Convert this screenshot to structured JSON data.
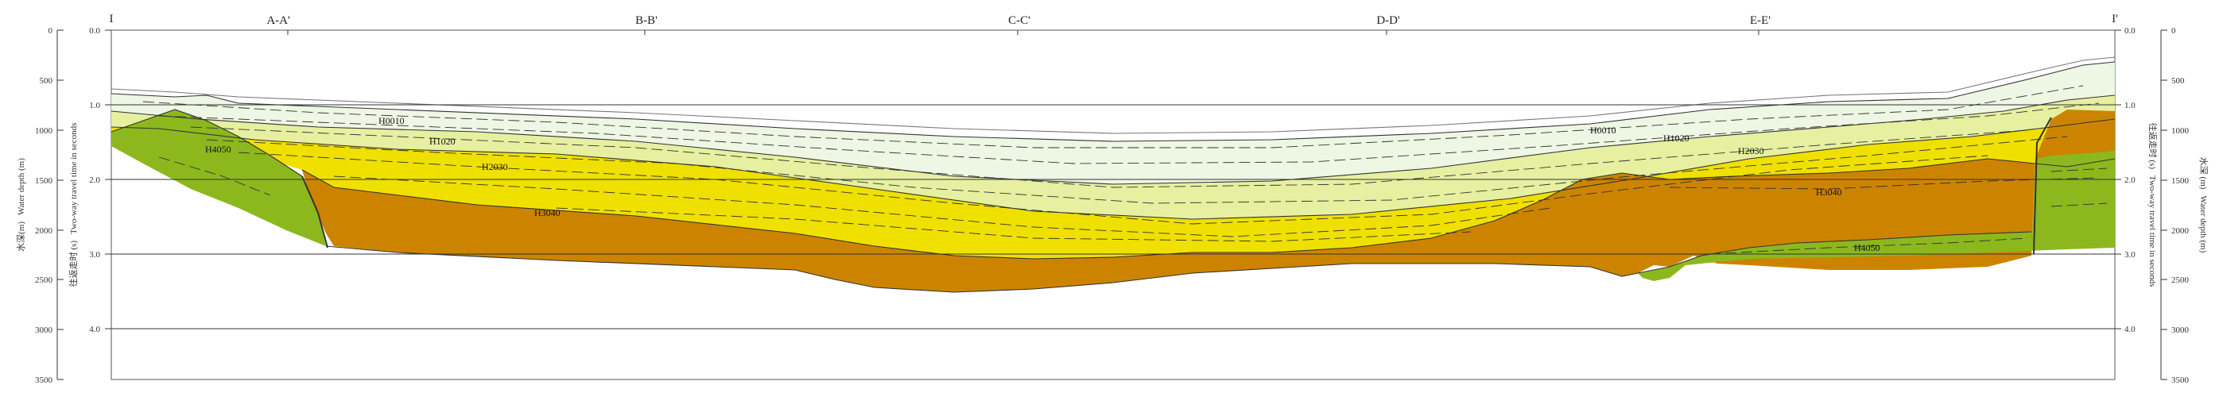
{
  "section_labels": {
    "left_end": "I",
    "right_end": "I'",
    "crossings": [
      "A-A'",
      "B-B'",
      "C-C'",
      "D-D'",
      "E-E'"
    ]
  },
  "axes": {
    "left_outer_title_cn": "水深(m)",
    "left_outer_title_en": "Water depth (m)",
    "left_inner_title_cn": "往返走时 (s)",
    "left_inner_title_en": "Two-way travel time in seconds",
    "right_inner_title_cn": "往返走时 (s)",
    "right_inner_title_en": "Two-way travel time in seconds",
    "right_outer_title_cn": "水深 (m)",
    "right_outer_title_en": "Water depth (m)",
    "depth_ticks": [
      "0",
      "500",
      "1000",
      "1500",
      "2000",
      "2500",
      "3000",
      "3500"
    ],
    "twt_ticks": [
      "0.0",
      "1.0",
      "2.0",
      "3.0",
      "4.0"
    ]
  },
  "unit_labels": {
    "h0010_left": "H0010",
    "h1020_left": "H1020",
    "h2030_left": "H2030",
    "h3040_left": "H3040",
    "h4050_left": "H4050",
    "h0010_right": "H0010",
    "h1020_right": "H1020",
    "h2030_right": "H2030",
    "h3040_right": "H3040",
    "h4050_right": "H4050"
  },
  "colors": {
    "unit_0010": "#eef6e4",
    "unit_1020": "#e6f0a0",
    "unit_2030": "#f0e000",
    "unit_3040": "#cc8400",
    "unit_4050": "#8cb81e"
  }
}
